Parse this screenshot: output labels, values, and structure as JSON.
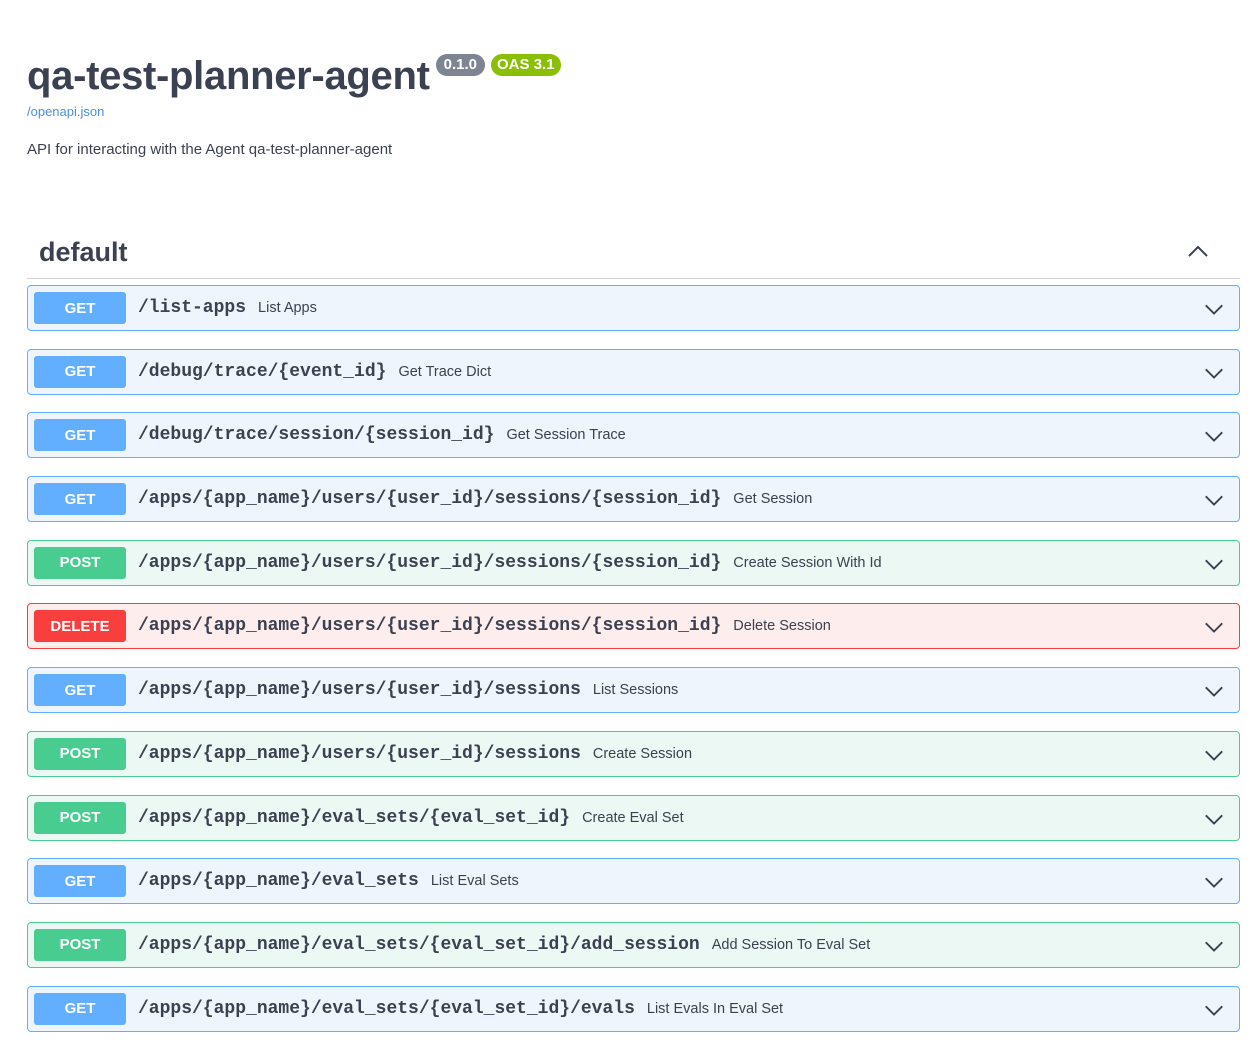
{
  "info": {
    "title": "qa-test-planner-agent",
    "version": "0.1.0",
    "oas": "OAS 3.1",
    "spec_link": "/openapi.json",
    "description": "API for interacting with the Agent qa-test-planner-agent"
  },
  "tag": {
    "name": "default",
    "collapse_icon": "chevron-up-icon"
  },
  "colors": {
    "get": "#61affe",
    "post": "#49cc90",
    "delete": "#f93e3e"
  },
  "operations": [
    {
      "method": "GET",
      "path": "/list-apps",
      "summary": "List Apps"
    },
    {
      "method": "GET",
      "path": "/debug/trace/{event_id}",
      "summary": "Get Trace Dict"
    },
    {
      "method": "GET",
      "path": "/debug/trace/session/{session_id}",
      "summary": "Get Session Trace"
    },
    {
      "method": "GET",
      "path": "/apps/{app_name}/users/{user_id}/sessions/{session_id}",
      "summary": "Get Session"
    },
    {
      "method": "POST",
      "path": "/apps/{app_name}/users/{user_id}/sessions/{session_id}",
      "summary": "Create Session With Id"
    },
    {
      "method": "DELETE",
      "path": "/apps/{app_name}/users/{user_id}/sessions/{session_id}",
      "summary": "Delete Session"
    },
    {
      "method": "GET",
      "path": "/apps/{app_name}/users/{user_id}/sessions",
      "summary": "List Sessions"
    },
    {
      "method": "POST",
      "path": "/apps/{app_name}/users/{user_id}/sessions",
      "summary": "Create Session"
    },
    {
      "method": "POST",
      "path": "/apps/{app_name}/eval_sets/{eval_set_id}",
      "summary": "Create Eval Set"
    },
    {
      "method": "GET",
      "path": "/apps/{app_name}/eval_sets",
      "summary": "List Eval Sets"
    },
    {
      "method": "POST",
      "path": "/apps/{app_name}/eval_sets/{eval_set_id}/add_session",
      "summary": "Add Session To Eval Set"
    },
    {
      "method": "GET",
      "path": "/apps/{app_name}/eval_sets/{eval_set_id}/evals",
      "summary": "List Evals In Eval Set"
    }
  ]
}
